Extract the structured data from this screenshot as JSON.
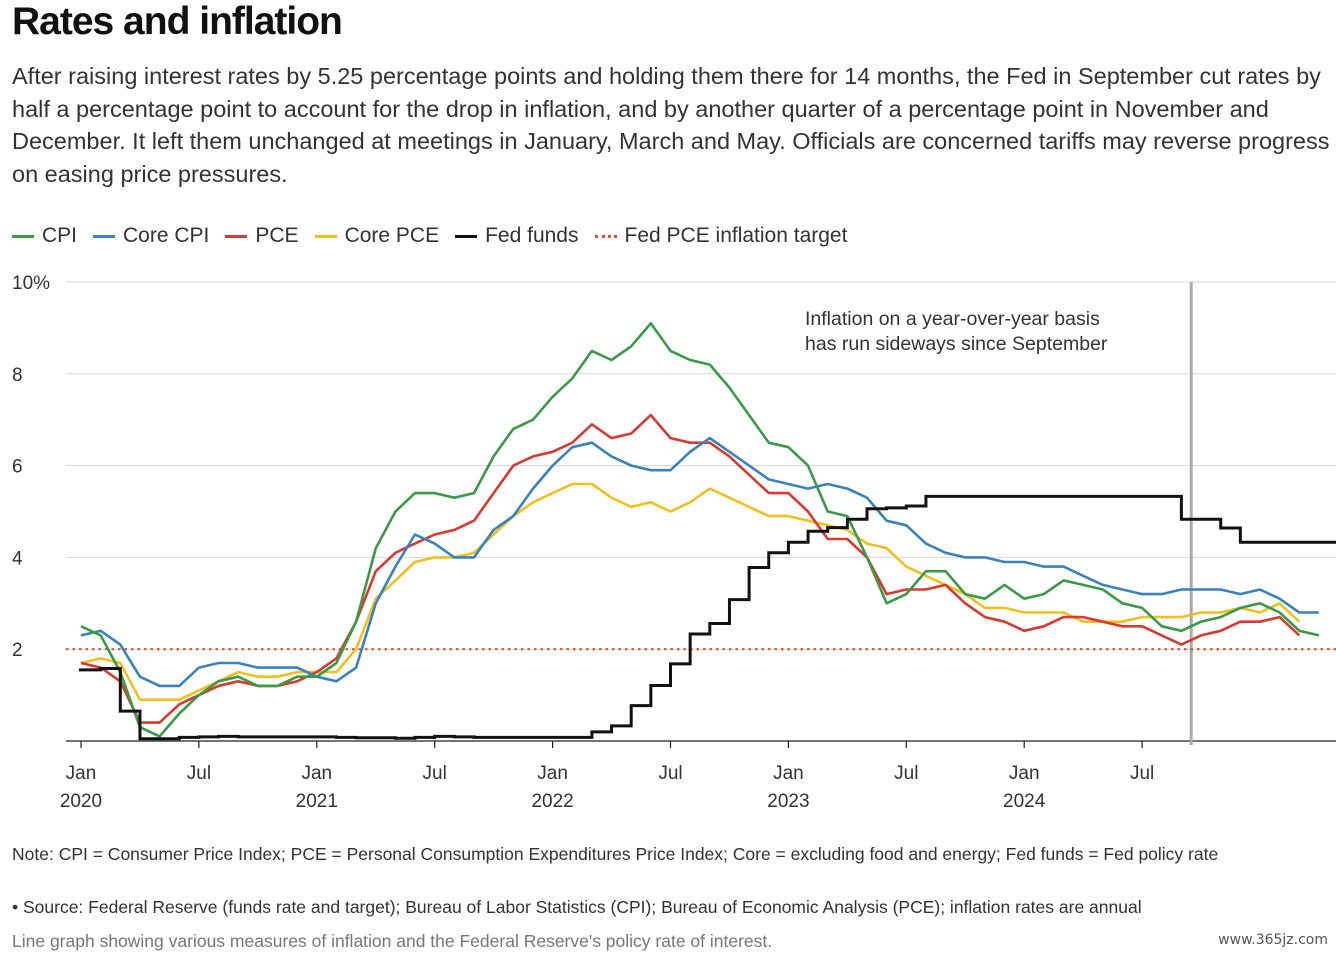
{
  "title": "Rates and inflation",
  "subtitle": "After raising interest rates by 5.25 percentage points and holding them there for 14 months, the Fed in September cut rates by half a percentage point to account for the drop in inflation, and by another quarter of a percentage point in November and December. It left them unchanged at meetings in January, March and May. Officials are concerned tariffs may reverse progress on easing price pressures.",
  "note": "Note: CPI = Consumer Price Index; PCE = Personal Consumption Expenditures Price Index; Core = excluding food and energy; Fed funds = Fed policy rate",
  "source": "• Source: Federal Reserve (funds rate and target); Bureau of Labor Statistics (CPI); Bureau of Economic Analysis (PCE); inflation rates are annual",
  "alt_text": "Line graph showing various measures of inflation and the Federal Reserve's policy rate of interest.",
  "watermark": "www.365jz.com",
  "chart_data": {
    "type": "line",
    "title": "Rates and inflation",
    "xlabel": "",
    "ylabel": "",
    "ylim": [
      0,
      10
    ],
    "yticks": [
      2,
      4,
      6,
      8,
      10
    ],
    "ytick_labels": [
      "2",
      "4",
      "6",
      "8",
      "10%"
    ],
    "grid": true,
    "legend_position": "top-left",
    "x_start": "Jan 2020",
    "x_end": "May 2025",
    "x_ticks": [
      {
        "month": 0,
        "line1": "Jan",
        "line2": "2020"
      },
      {
        "month": 6,
        "line1": "Jul",
        "line2": ""
      },
      {
        "month": 12,
        "line1": "Jan",
        "line2": "2021"
      },
      {
        "month": 18,
        "line1": "Jul",
        "line2": ""
      },
      {
        "month": 24,
        "line1": "Jan",
        "line2": "2022"
      },
      {
        "month": 30,
        "line1": "Jul",
        "line2": ""
      },
      {
        "month": 36,
        "line1": "Jan",
        "line2": "2023"
      },
      {
        "month": 42,
        "line1": "Jul",
        "line2": ""
      },
      {
        "month": 48,
        "line1": "Jan",
        "line2": "2024"
      },
      {
        "month": 54,
        "line1": "Jul",
        "line2": ""
      }
    ],
    "annotation": {
      "month": 56.5,
      "line1": "Inflation on a year-over-year basis",
      "line2": "has run sideways since September"
    },
    "series": [
      {
        "name": "CPI",
        "color": "#3a9a48",
        "style": "solid",
        "values": [
          2.5,
          2.3,
          1.5,
          0.3,
          0.1,
          0.6,
          1.0,
          1.3,
          1.4,
          1.2,
          1.2,
          1.4,
          1.4,
          1.7,
          2.6,
          4.2,
          5.0,
          5.4,
          5.4,
          5.3,
          5.4,
          6.2,
          6.8,
          7.0,
          7.5,
          7.9,
          8.5,
          8.3,
          8.6,
          9.1,
          8.5,
          8.3,
          8.2,
          7.7,
          7.1,
          6.5,
          6.4,
          6.0,
          5.0,
          4.9,
          4.0,
          3.0,
          3.2,
          3.7,
          3.7,
          3.2,
          3.1,
          3.4,
          3.1,
          3.2,
          3.5,
          3.4,
          3.3,
          3.0,
          2.9,
          2.5,
          2.4,
          2.6,
          2.7,
          2.9,
          3.0,
          2.8,
          2.4,
          2.3
        ]
      },
      {
        "name": "Core CPI",
        "color": "#3a82bd",
        "style": "solid",
        "values": [
          2.3,
          2.4,
          2.1,
          1.4,
          1.2,
          1.2,
          1.6,
          1.7,
          1.7,
          1.6,
          1.6,
          1.6,
          1.4,
          1.3,
          1.6,
          3.0,
          3.8,
          4.5,
          4.3,
          4.0,
          4.0,
          4.6,
          4.9,
          5.5,
          6.0,
          6.4,
          6.5,
          6.2,
          6.0,
          5.9,
          5.9,
          6.3,
          6.6,
          6.3,
          6.0,
          5.7,
          5.6,
          5.5,
          5.6,
          5.5,
          5.3,
          4.8,
          4.7,
          4.3,
          4.1,
          4.0,
          4.0,
          3.9,
          3.9,
          3.8,
          3.8,
          3.6,
          3.4,
          3.3,
          3.2,
          3.2,
          3.3,
          3.3,
          3.3,
          3.2,
          3.3,
          3.1,
          2.8,
          2.8
        ]
      },
      {
        "name": "PCE",
        "color": "#d63a30",
        "style": "solid",
        "values": [
          1.7,
          1.6,
          1.3,
          0.4,
          0.4,
          0.8,
          1.0,
          1.2,
          1.3,
          1.2,
          1.2,
          1.3,
          1.5,
          1.8,
          2.6,
          3.7,
          4.1,
          4.3,
          4.5,
          4.6,
          4.8,
          5.4,
          6.0,
          6.2,
          6.3,
          6.5,
          6.9,
          6.6,
          6.7,
          7.1,
          6.6,
          6.5,
          6.5,
          6.2,
          5.8,
          5.4,
          5.4,
          5.0,
          4.4,
          4.4,
          4.0,
          3.2,
          3.3,
          3.3,
          3.4,
          3.0,
          2.7,
          2.6,
          2.4,
          2.5,
          2.7,
          2.7,
          2.6,
          2.5,
          2.5,
          2.3,
          2.1,
          2.3,
          2.4,
          2.6,
          2.6,
          2.7,
          2.3
        ]
      },
      {
        "name": "Core PCE",
        "color": "#f0c020",
        "style": "solid",
        "values": [
          1.7,
          1.8,
          1.7,
          0.9,
          0.9,
          0.9,
          1.1,
          1.3,
          1.5,
          1.4,
          1.4,
          1.5,
          1.5,
          1.5,
          2.0,
          3.1,
          3.5,
          3.9,
          4.0,
          4.0,
          4.1,
          4.5,
          4.9,
          5.2,
          5.4,
          5.6,
          5.6,
          5.3,
          5.1,
          5.2,
          5.0,
          5.2,
          5.5,
          5.3,
          5.1,
          4.9,
          4.9,
          4.8,
          4.7,
          4.6,
          4.3,
          4.2,
          3.8,
          3.6,
          3.4,
          3.2,
          2.9,
          2.9,
          2.8,
          2.8,
          2.8,
          2.6,
          2.6,
          2.6,
          2.7,
          2.7,
          2.7,
          2.8,
          2.8,
          2.9,
          2.8,
          3.0,
          2.6
        ]
      },
      {
        "name": "Fed funds",
        "color": "#111111",
        "style": "step",
        "values": [
          1.55,
          1.58,
          0.65,
          0.05,
          0.05,
          0.08,
          0.09,
          0.1,
          0.09,
          0.09,
          0.09,
          0.09,
          0.09,
          0.08,
          0.07,
          0.07,
          0.06,
          0.08,
          0.1,
          0.09,
          0.08,
          0.08,
          0.08,
          0.08,
          0.08,
          0.08,
          0.2,
          0.33,
          0.77,
          1.21,
          1.68,
          2.33,
          2.56,
          3.08,
          3.78,
          4.1,
          4.33,
          4.57,
          4.65,
          4.83,
          5.06,
          5.08,
          5.12,
          5.33,
          5.33,
          5.33,
          5.33,
          5.33,
          5.33,
          5.33,
          5.33,
          5.33,
          5.33,
          5.33,
          5.33,
          5.33,
          4.83,
          4.83,
          4.64,
          4.33,
          4.33,
          4.33,
          4.33,
          4.33,
          4.33
        ]
      },
      {
        "name": "Fed PCE inflation target",
        "color": "#e0522c",
        "style": "dotted",
        "values": [
          2,
          2
        ]
      }
    ]
  }
}
